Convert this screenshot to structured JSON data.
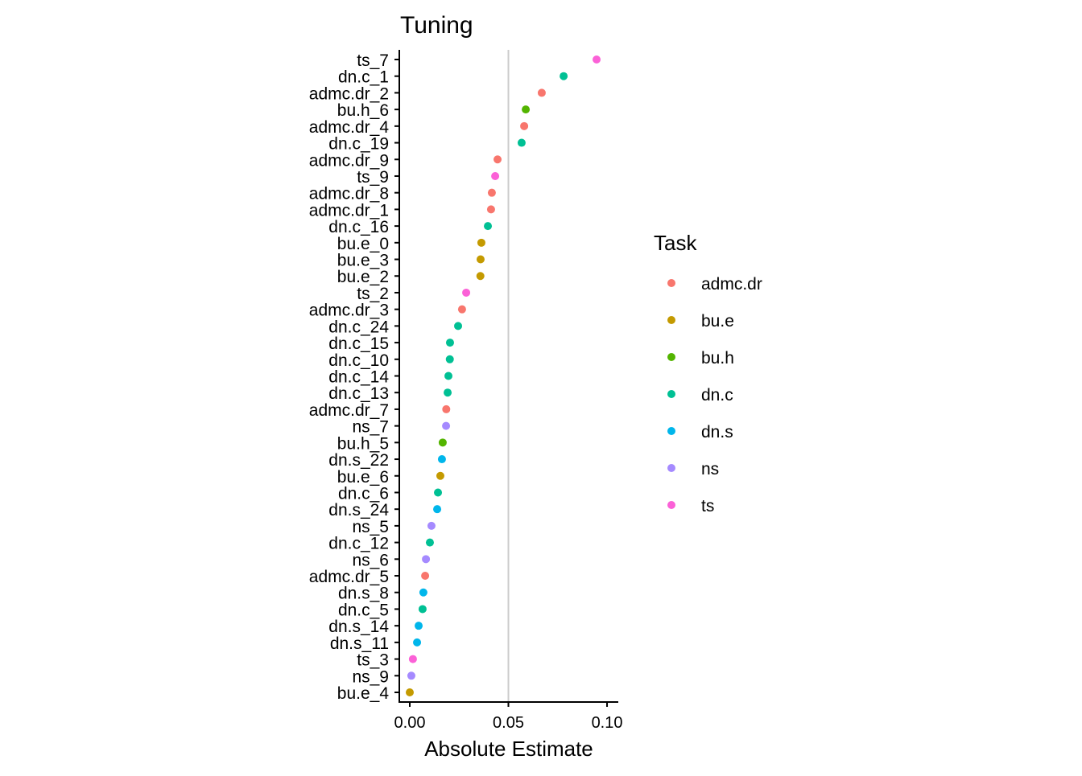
{
  "chart_data": {
    "type": "scatter",
    "title": "Tuning",
    "xlabel": "Absolute Estimate",
    "ylabel": "",
    "xlim": [
      -0.0053,
      0.1057
    ],
    "xticks": [
      0.0,
      0.05,
      0.1
    ],
    "xtick_labels": [
      "0.00",
      "0.05",
      "0.10"
    ],
    "vline": 0.05,
    "grid": false,
    "legend": {
      "title": "Task",
      "placement": "right",
      "entries": [
        {
          "label": "admc.dr",
          "color": "#F8766D"
        },
        {
          "label": "bu.e",
          "color": "#C49A00"
        },
        {
          "label": "bu.h",
          "color": "#53B400"
        },
        {
          "label": "dn.c",
          "color": "#00C094"
        },
        {
          "label": "dn.s",
          "color": "#00B6EB"
        },
        {
          "label": "ns",
          "color": "#A58AFF"
        },
        {
          "label": "ts",
          "color": "#FB61D7"
        }
      ]
    },
    "points": [
      {
        "label": "ts_7",
        "task": "ts",
        "value": 0.0947
      },
      {
        "label": "dn.c_1",
        "task": "dn.c",
        "value": 0.078
      },
      {
        "label": "admc.dr_2",
        "task": "admc.dr",
        "value": 0.0669
      },
      {
        "label": "bu.h_6",
        "task": "bu.h",
        "value": 0.0588
      },
      {
        "label": "admc.dr_4",
        "task": "admc.dr",
        "value": 0.058
      },
      {
        "label": "dn.c_19",
        "task": "dn.c",
        "value": 0.0567
      },
      {
        "label": "admc.dr_9",
        "task": "admc.dr",
        "value": 0.0445
      },
      {
        "label": "ts_9",
        "task": "ts",
        "value": 0.0433
      },
      {
        "label": "admc.dr_8",
        "task": "admc.dr",
        "value": 0.0416
      },
      {
        "label": "admc.dr_1",
        "task": "admc.dr",
        "value": 0.0412
      },
      {
        "label": "dn.c_16",
        "task": "dn.c",
        "value": 0.0396
      },
      {
        "label": "bu.e_0",
        "task": "bu.e",
        "value": 0.0363
      },
      {
        "label": "bu.e_3",
        "task": "bu.e",
        "value": 0.0359
      },
      {
        "label": "bu.e_2",
        "task": "bu.e",
        "value": 0.0358
      },
      {
        "label": "ts_2",
        "task": "ts",
        "value": 0.0286
      },
      {
        "label": "admc.dr_3",
        "task": "admc.dr",
        "value": 0.0265
      },
      {
        "label": "dn.c_24",
        "task": "dn.c",
        "value": 0.0245
      },
      {
        "label": "dn.c_15",
        "task": "dn.c",
        "value": 0.0204
      },
      {
        "label": "dn.c_10",
        "task": "dn.c",
        "value": 0.0203
      },
      {
        "label": "dn.c_14",
        "task": "dn.c",
        "value": 0.0196
      },
      {
        "label": "dn.c_13",
        "task": "dn.c",
        "value": 0.0192
      },
      {
        "label": "admc.dr_7",
        "task": "admc.dr",
        "value": 0.0185
      },
      {
        "label": "ns_7",
        "task": "ns",
        "value": 0.0184
      },
      {
        "label": "bu.h_5",
        "task": "bu.h",
        "value": 0.0167
      },
      {
        "label": "dn.s_22",
        "task": "dn.s",
        "value": 0.0163
      },
      {
        "label": "bu.e_6",
        "task": "bu.e",
        "value": 0.0155
      },
      {
        "label": "dn.c_6",
        "task": "dn.c",
        "value": 0.0143
      },
      {
        "label": "dn.s_24",
        "task": "dn.s",
        "value": 0.0139
      },
      {
        "label": "ns_5",
        "task": "ns",
        "value": 0.011
      },
      {
        "label": "dn.c_12",
        "task": "dn.c",
        "value": 0.0102
      },
      {
        "label": "ns_6",
        "task": "ns",
        "value": 0.0082
      },
      {
        "label": "admc.dr_5",
        "task": "admc.dr",
        "value": 0.0078
      },
      {
        "label": "dn.s_8",
        "task": "dn.s",
        "value": 0.0069
      },
      {
        "label": "dn.c_5",
        "task": "dn.c",
        "value": 0.0065
      },
      {
        "label": "dn.s_14",
        "task": "dn.s",
        "value": 0.0045
      },
      {
        "label": "dn.s_11",
        "task": "dn.s",
        "value": 0.0037
      },
      {
        "label": "ts_3",
        "task": "ts",
        "value": 0.0016
      },
      {
        "label": "ns_9",
        "task": "ns",
        "value": 0.0008
      },
      {
        "label": "bu.e_4",
        "task": "bu.e",
        "value": 0.0
      }
    ]
  }
}
